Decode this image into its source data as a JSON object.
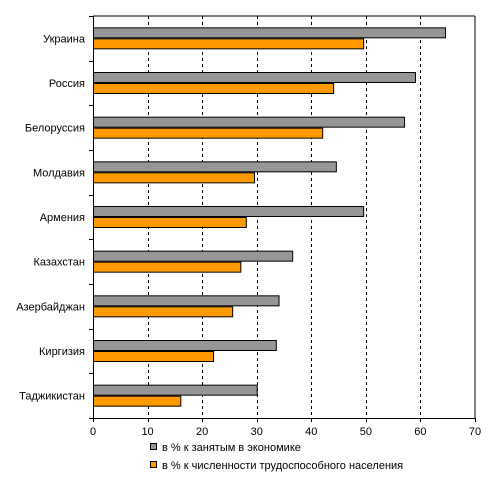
{
  "chart_data": {
    "type": "bar",
    "orientation": "horizontal",
    "categories": [
      "Украина",
      "Россия",
      "Белоруссия",
      "Молдавия",
      "Армения",
      "Казахстан",
      "Азербайджан",
      "Киргизия",
      "Таджикистан"
    ],
    "series": [
      {
        "name": "в % к занятым в экономике",
        "color": "#969696",
        "values": [
          64.5,
          59,
          57,
          44.5,
          49.5,
          36.5,
          34,
          33.5,
          30
        ]
      },
      {
        "name": "в % к численности трудоспособного населения",
        "color": "#ff9900",
        "values": [
          49.5,
          44,
          42,
          29.5,
          28,
          27,
          25.5,
          22,
          16
        ]
      }
    ],
    "xlim": [
      0,
      70
    ],
    "xticks": [
      0,
      10,
      20,
      30,
      40,
      50,
      60,
      70
    ],
    "grid": "vertical dashed",
    "legend_position": "bottom"
  }
}
